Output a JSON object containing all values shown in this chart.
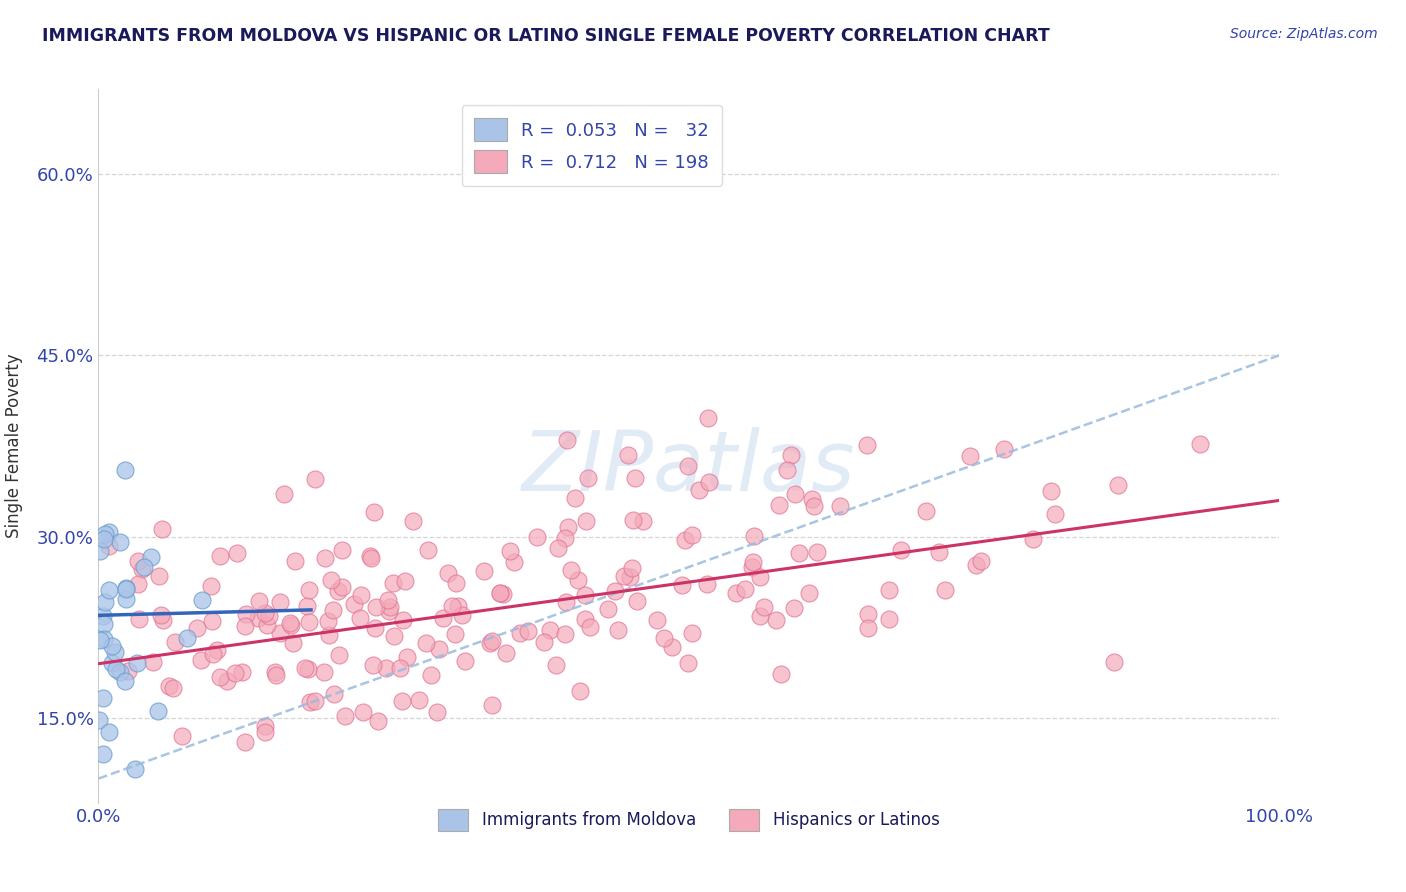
{
  "title": "IMMIGRANTS FROM MOLDOVA VS HISPANIC OR LATINO SINGLE FEMALE POVERTY CORRELATION CHART",
  "source_text": "Source: ZipAtlas.com",
  "ylabel": "Single Female Poverty",
  "x_min": 0.0,
  "x_max": 1.0,
  "y_min": 0.08,
  "y_max": 0.67,
  "y_ticks": [
    0.15,
    0.3,
    0.45,
    0.6
  ],
  "y_tick_labels": [
    "15.0%",
    "30.0%",
    "45.0%",
    "60.0%"
  ],
  "x_ticks": [
    0.0,
    1.0
  ],
  "x_tick_labels": [
    "0.0%",
    "100.0%"
  ],
  "watermark": "ZIPatlas",
  "blue_dot_color": "#aac4e8",
  "blue_dot_edge": "#6699cc",
  "pink_dot_color": "#f4aabb",
  "pink_dot_edge": "#e07090",
  "blue_line_color": "#3366bb",
  "pink_line_color": "#cc3366",
  "blue_dash_color": "#99bbdd",
  "title_color": "#1a1a5a",
  "axis_label_color": "#3344aa",
  "tick_color": "#3344aa",
  "grid_color": "#cccccc",
  "background_color": "#ffffff",
  "R_blue": 0.053,
  "N_blue": 32,
  "R_pink": 0.712,
  "N_pink": 198,
  "seed": 42,
  "blue_intercept": 0.235,
  "blue_slope": 0.025,
  "pink_intercept": 0.195,
  "pink_slope": 0.135,
  "pink_dash_intercept": 0.1,
  "pink_dash_slope": 0.35
}
